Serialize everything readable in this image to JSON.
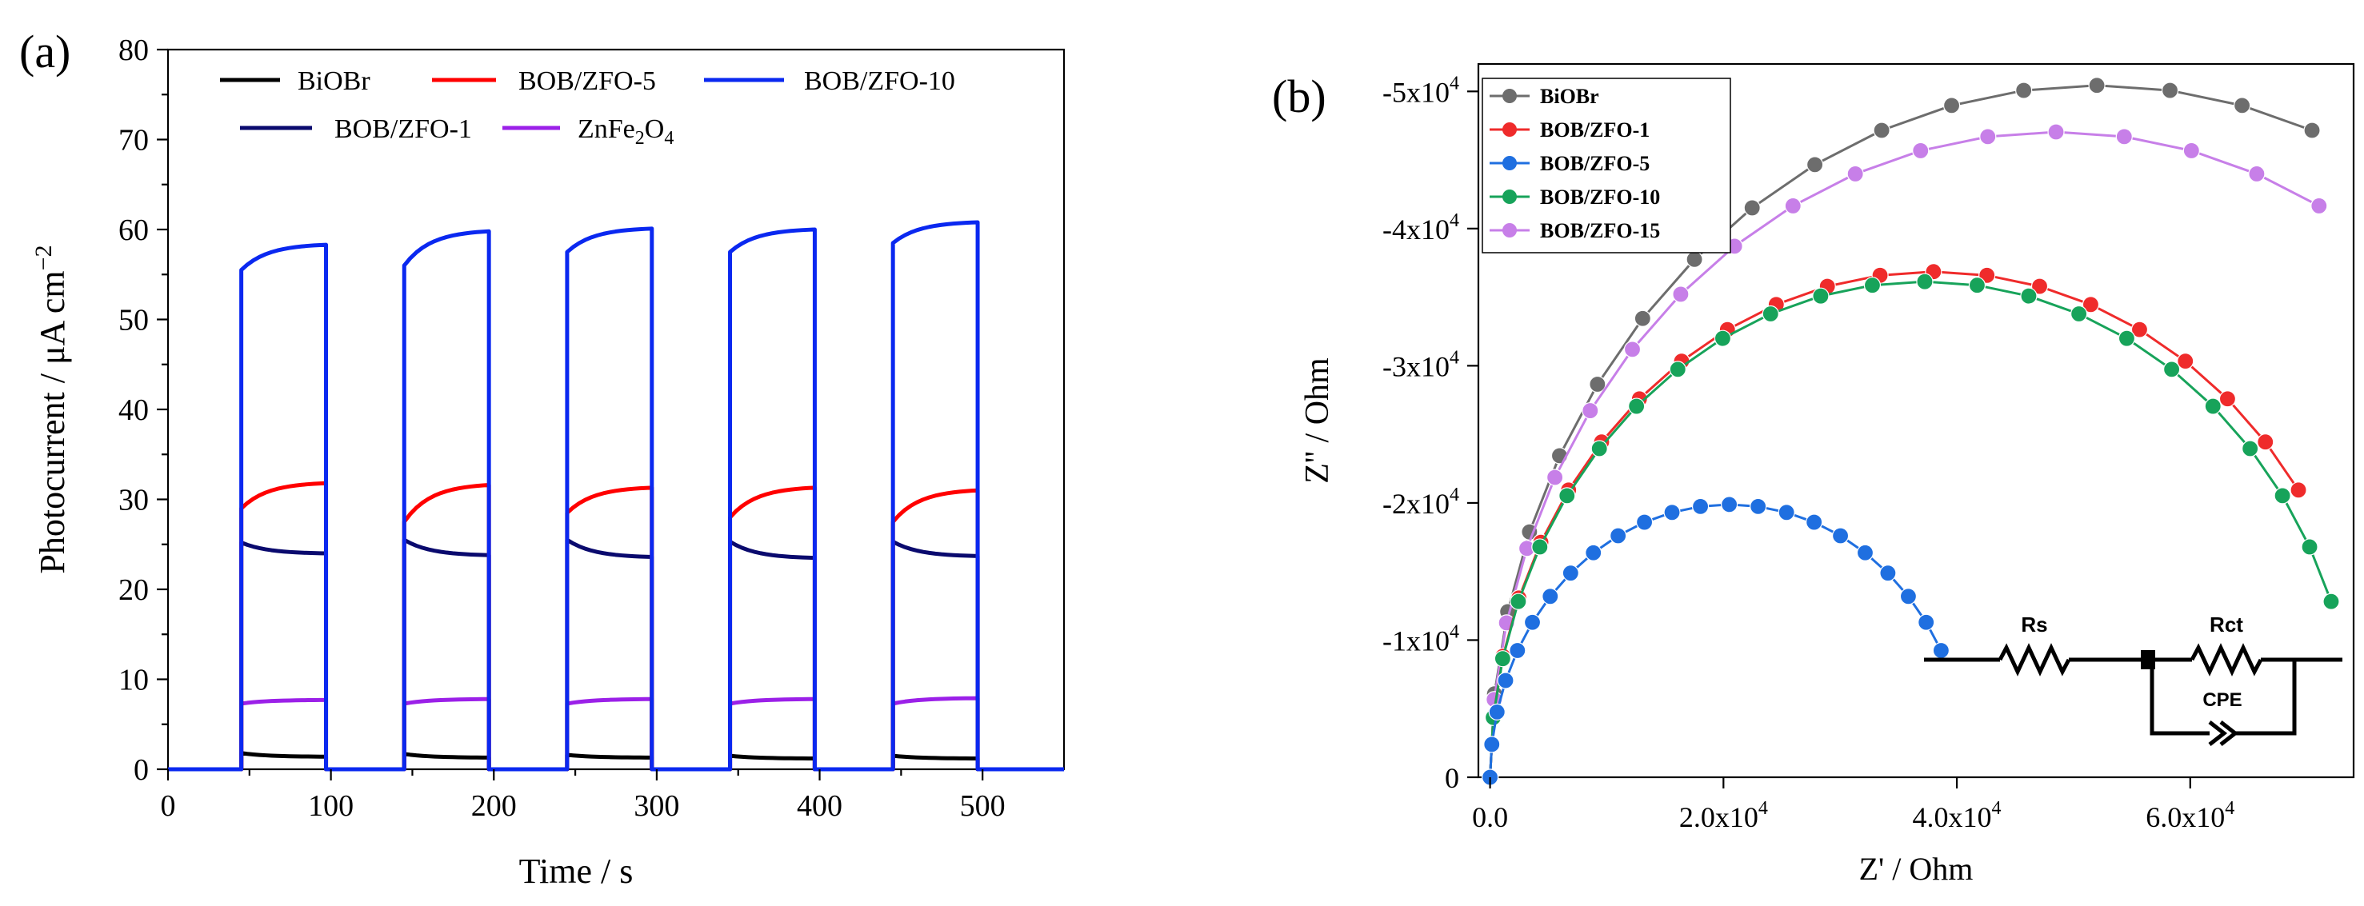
{
  "chart_data": [
    {
      "panel": "(a)",
      "type": "line",
      "xlabel": "Time / s",
      "ylabel": "Photocurrent / μA cm",
      "ylabel_sup": "−2",
      "xlim": [
        0,
        550
      ],
      "ylim": [
        0,
        80
      ],
      "xticks": [
        "0",
        "100",
        "200",
        "300",
        "400",
        "500"
      ],
      "yticks": [
        "0",
        "10",
        "20",
        "30",
        "40",
        "50",
        "60",
        "70",
        "80"
      ],
      "on_intervals": [
        [
          45,
          97
        ],
        [
          145,
          197
        ],
        [
          245,
          297
        ],
        [
          345,
          397
        ],
        [
          445,
          497
        ]
      ],
      "series": [
        {
          "name": "BiOBr",
          "color": "#000000",
          "on_start": [
            1.8,
            1.7,
            1.6,
            1.5,
            1.5
          ],
          "on_end": [
            1.4,
            1.3,
            1.3,
            1.2,
            1.2
          ]
        },
        {
          "name": "BOB/ZFO-5",
          "color": "#ff0000",
          "on_start": [
            29.0,
            27.5,
            28.5,
            28.0,
            27.5
          ],
          "on_end": [
            31.8,
            31.6,
            31.3,
            31.3,
            31.0
          ]
        },
        {
          "name": "BOB/ZFO-10",
          "color": "#0a28f0",
          "on_start": [
            55.5,
            56.0,
            57.5,
            57.5,
            58.5
          ],
          "on_end": [
            58.3,
            59.8,
            60.1,
            60.0,
            60.8
          ]
        },
        {
          "name": "BOB/ZFO-1",
          "color": "#0a0a6e",
          "on_start": [
            25.2,
            25.5,
            25.5,
            25.3,
            25.3
          ],
          "on_end": [
            24.0,
            23.8,
            23.6,
            23.5,
            23.7
          ]
        },
        {
          "name": "ZnFe2O4",
          "color": "#9b20e8",
          "on_start": [
            7.3,
            7.3,
            7.3,
            7.3,
            7.3
          ],
          "on_end": [
            7.7,
            7.8,
            7.8,
            7.8,
            7.9
          ]
        }
      ],
      "legend": [
        "BiOBr",
        "BOB/ZFO-5",
        "BOB/ZFO-10",
        "BOB/ZFO-1",
        "ZnFe2O4"
      ]
    },
    {
      "panel": "(b)",
      "type": "scatter",
      "xlabel": "Z' / Ohm",
      "ylabel": "Z'' / Ohm",
      "xlim": [
        -1000,
        74000
      ],
      "ylim": [
        0,
        -52000
      ],
      "xticks": [
        {
          "value": 0,
          "label": "0.0"
        },
        {
          "value": 20000,
          "label": "2.0x10",
          "sup": "4"
        },
        {
          "value": 40000,
          "label": "4.0x10",
          "sup": "4"
        },
        {
          "value": 60000,
          "label": "6.0x10",
          "sup": "4"
        }
      ],
      "yticks": [
        {
          "value": 0,
          "label": "0"
        },
        {
          "value": -10000,
          "label": "-1x10",
          "sup": "4"
        },
        {
          "value": -20000,
          "label": "-2x10",
          "sup": "4"
        },
        {
          "value": -30000,
          "label": "-3x10",
          "sup": "4"
        },
        {
          "value": -40000,
          "label": "-4x10",
          "sup": "4"
        },
        {
          "value": -50000,
          "label": "-5x10",
          "sup": "4"
        }
      ],
      "series": [
        {
          "name": "BiOBr",
          "color": "#6d6d6d",
          "Rct": 104000,
          "plot_max": 74000
        },
        {
          "name": "BOB/ZFO-1",
          "color": "#ef2b2b",
          "Rct": 76000,
          "plot_max": 70000
        },
        {
          "name": "BOB/ZFO-5",
          "color": "#1f6fe0",
          "Rct": 41000,
          "plot_max": 39500
        },
        {
          "name": "BOB/ZFO-10",
          "color": "#17a35a",
          "Rct": 74500,
          "plot_max": 72500
        },
        {
          "name": "BOB/ZFO-15",
          "color": "#c77fe8",
          "Rct": 97000,
          "plot_max": 74000
        }
      ],
      "legend": [
        "BiOBr",
        "BOB/ZFO-1",
        "BOB/ZFO-5",
        "BOB/ZFO-10",
        "BOB/ZFO-15"
      ],
      "circuit": {
        "labels": [
          "Rs",
          "Rct",
          "CPE"
        ]
      }
    }
  ]
}
